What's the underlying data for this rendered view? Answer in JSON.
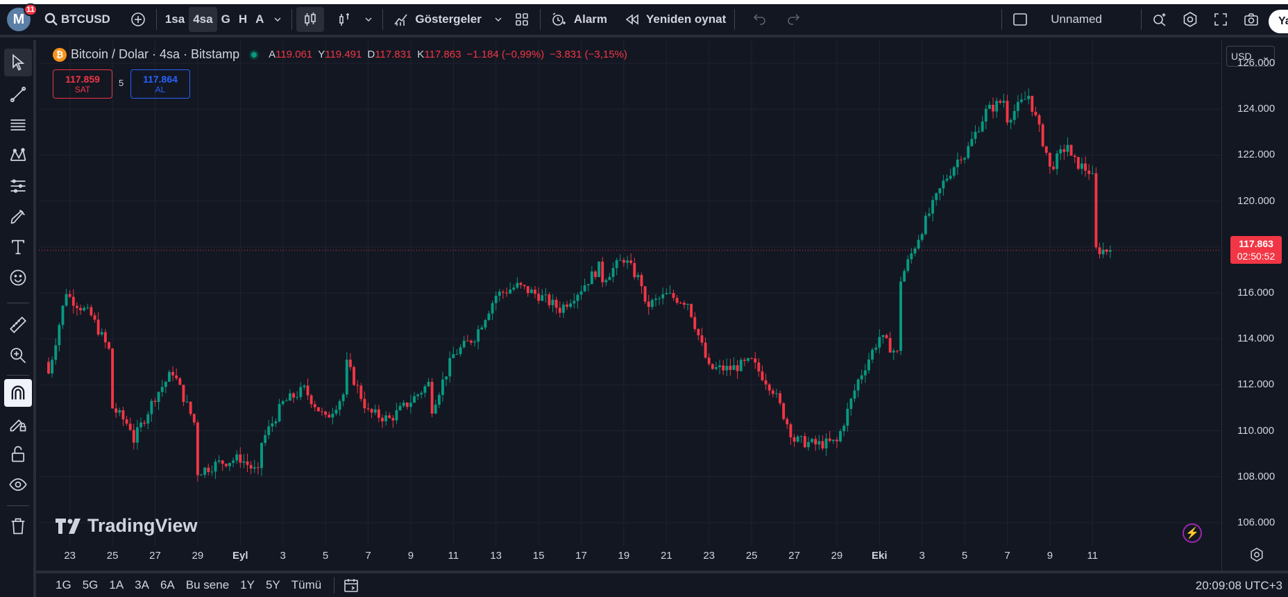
{
  "toolbar": {
    "avatar_letter": "M",
    "notification_count": "11",
    "symbol": "BTCUSD",
    "intervals": [
      "1sa",
      "4sa",
      "G",
      "H",
      "A"
    ],
    "active_interval": "4sa",
    "indicators_label": "Göstergeler",
    "alert_label": "Alarm",
    "replay_label": "Yeniden oynat",
    "layout_name": "Unnamed",
    "right_button_label": "Ya"
  },
  "legend": {
    "coin_glyph": "₿",
    "title": "Bitcoin / Dolar · 4sa · Bitstamp",
    "open_label": "A",
    "open": "119.061",
    "high_label": "Y",
    "high": "119.491",
    "low_label": "D",
    "low": "117.831",
    "close_label": "K",
    "close": "117.863",
    "change": "−1.184 (−0,99%)",
    "change2": "−3.831 (−3,15%)"
  },
  "trade": {
    "sell_price": "117.859",
    "sell_label": "SAT",
    "spread": "5",
    "buy_price": "117.864",
    "buy_label": "AL"
  },
  "price_scale": {
    "currency": "USD",
    "ticks": [
      "126.000",
      "124.000",
      "122.000",
      "120.000",
      "116.000",
      "114.000",
      "112.000",
      "110.000",
      "108.000",
      "106.000"
    ],
    "current_price": "117.863",
    "countdown": "02:50:52"
  },
  "time_scale": {
    "ticks": [
      "23",
      "25",
      "27",
      "29",
      "Eyl",
      "3",
      "5",
      "7",
      "9",
      "11",
      "13",
      "15",
      "17",
      "19",
      "21",
      "23",
      "25",
      "27",
      "29",
      "Eki",
      "3",
      "5",
      "7",
      "9",
      "11"
    ]
  },
  "watermark": "TradingView",
  "bottom": {
    "ranges": [
      "1G",
      "5G",
      "1A",
      "3A",
      "6A",
      "Bu sene",
      "1Y",
      "5Y",
      "Tümü"
    ],
    "clock": "20:09:08 UTC+3"
  },
  "colors": {
    "up": "#089981",
    "down": "#f23645",
    "background": "#131722",
    "grid": "#1f2330"
  },
  "chart_data": {
    "type": "candlestick",
    "symbol": "BTCUSD",
    "y_range": [
      105000,
      127000
    ],
    "x_range": [
      "Aug 22",
      "Oct 11"
    ],
    "current_price": 117863,
    "anchors": [
      [
        "Aug 22",
        113000
      ],
      [
        "Aug 22",
        112500
      ],
      [
        "Aug 23",
        116800
      ],
      [
        "Aug 23",
        115800
      ],
      [
        "Aug 24",
        115000
      ],
      [
        "Aug 25",
        113200
      ],
      [
        "Aug 25",
        111000
      ],
      [
        "Aug 26",
        110000
      ],
      [
        "Aug 26",
        109600
      ],
      [
        "Aug 27",
        111500
      ],
      [
        "Aug 28",
        112800
      ],
      [
        "Aug 28",
        112200
      ],
      [
        "Aug 29",
        110000
      ],
      [
        "Aug 29",
        108200
      ],
      [
        "Aug 30",
        108600
      ],
      [
        "Aug 31",
        108800
      ],
      [
        "Sep 1",
        108000
      ],
      [
        "Sep 1",
        109500
      ],
      [
        "Sep 2",
        111200
      ],
      [
        "Sep 3",
        111800
      ],
      [
        "Sep 4",
        110500
      ],
      [
        "Sep 5",
        111800
      ],
      [
        "Sep 5",
        112900
      ],
      [
        "Sep 6",
        110800
      ],
      [
        "Sep 7",
        110500
      ],
      [
        "Sep 8",
        111300
      ],
      [
        "Sep 9",
        112200
      ],
      [
        "Sep 9",
        111000
      ],
      [
        "Sep 10",
        113300
      ],
      [
        "Sep 11",
        114100
      ],
      [
        "Sep 12",
        115900
      ],
      [
        "Sep 13",
        116300
      ],
      [
        "Sep 14",
        115900
      ],
      [
        "Sep 15",
        115300
      ],
      [
        "Sep 16",
        116200
      ],
      [
        "Sep 17",
        117300
      ],
      [
        "Sep 17",
        116600
      ],
      [
        "Sep 18",
        117500
      ],
      [
        "Sep 19",
        116200
      ],
      [
        "Sep 19",
        115400
      ],
      [
        "Sep 20",
        115900
      ],
      [
        "Sep 21",
        115600
      ],
      [
        "Sep 22",
        112700
      ],
      [
        "Sep 23",
        112700
      ],
      [
        "Sep 24",
        113000
      ],
      [
        "Sep 25",
        111800
      ],
      [
        "Sep 26",
        109600
      ],
      [
        "Sep 27",
        109400
      ],
      [
        "Sep 28",
        109500
      ],
      [
        "Sep 29",
        112200
      ],
      [
        "Sep 30",
        114100
      ],
      [
        "Oct 1",
        113200
      ],
      [
        "Oct 1",
        116600
      ],
      [
        "Oct 2",
        118800
      ],
      [
        "Oct 3",
        120800
      ],
      [
        "Oct 4",
        122300
      ],
      [
        "Oct 4",
        122000
      ],
      [
        "Oct 5",
        123900
      ],
      [
        "Oct 6",
        124500
      ],
      [
        "Oct 6",
        123600
      ],
      [
        "Oct 7",
        124600
      ],
      [
        "Oct 8",
        121600
      ],
      [
        "Oct 8",
        121400
      ],
      [
        "Oct 9",
        122700
      ],
      [
        "Oct 9",
        121800
      ],
      [
        "Oct 10",
        121200
      ],
      [
        "Oct 10",
        121000
      ],
      [
        "Oct 10",
        117863
      ]
    ]
  }
}
